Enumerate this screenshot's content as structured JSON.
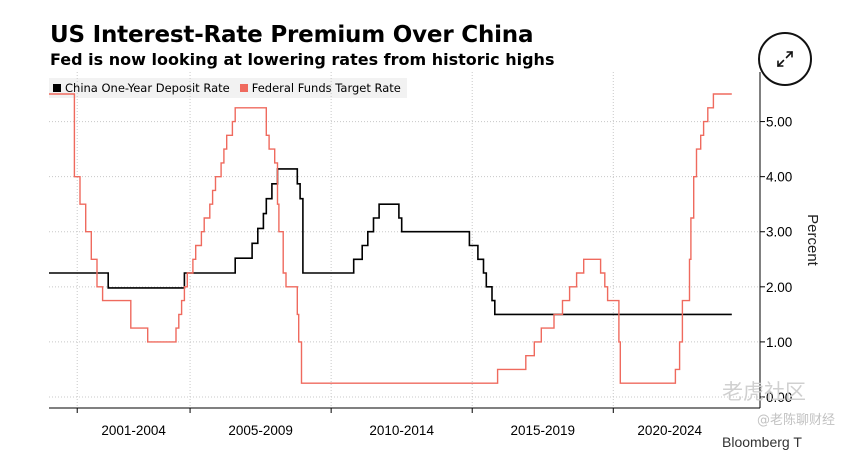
{
  "header": {
    "title": "US Interest-Rate Premium Over China",
    "subtitle": "Fed is now looking at lowering rates from historic highs"
  },
  "expand_button": {
    "icon": "expand-arrows-icon"
  },
  "watermark": {
    "line1": "老虎社区",
    "line2": "@老陈聊财经"
  },
  "source": "Bloomberg T",
  "chart_data": {
    "type": "line",
    "title": "US Interest-Rate Premium Over China",
    "subtitle": "Fed is now looking at lowering rates from historic highs",
    "xlabel": "",
    "ylabel": "Percent",
    "xlim": [
      2000,
      2025.2
    ],
    "ylim": [
      -0.2,
      5.9
    ],
    "x_ticks": [
      2001,
      2005,
      2010,
      2015,
      2020
    ],
    "x_tick_labels": [
      "2001-2004",
      "2005-2009",
      "2010-2014",
      "2015-2019",
      "2020-2024"
    ],
    "y_ticks": [
      0,
      1,
      2,
      3,
      4,
      5
    ],
    "y_tick_labels": [
      "0.00",
      "1.00",
      "2.00",
      "3.00",
      "4.00",
      "5.00"
    ],
    "grid": true,
    "y_axis_position": "right",
    "legend_position": "top-left",
    "series": [
      {
        "name": "China One-Year Deposit Rate",
        "color": "#000000",
        "step": true,
        "points": [
          [
            2000.0,
            2.25
          ],
          [
            2002.1,
            1.98
          ],
          [
            2004.8,
            2.25
          ],
          [
            2006.6,
            2.52
          ],
          [
            2007.2,
            2.79
          ],
          [
            2007.4,
            3.06
          ],
          [
            2007.6,
            3.33
          ],
          [
            2007.7,
            3.6
          ],
          [
            2007.9,
            3.87
          ],
          [
            2008.1,
            4.14
          ],
          [
            2008.8,
            3.87
          ],
          [
            2008.9,
            3.6
          ],
          [
            2009.0,
            2.25
          ],
          [
            2010.8,
            2.5
          ],
          [
            2011.1,
            2.75
          ],
          [
            2011.3,
            3.0
          ],
          [
            2011.5,
            3.25
          ],
          [
            2011.7,
            3.5
          ],
          [
            2012.4,
            3.25
          ],
          [
            2012.5,
            3.0
          ],
          [
            2014.9,
            2.75
          ],
          [
            2015.2,
            2.5
          ],
          [
            2015.4,
            2.25
          ],
          [
            2015.5,
            2.0
          ],
          [
            2015.7,
            1.75
          ],
          [
            2015.8,
            1.5
          ],
          [
            2024.2,
            1.5
          ]
        ]
      },
      {
        "name": "Federal Funds Target Rate",
        "color": "#ef6a5e",
        "step": true,
        "points": [
          [
            2000.0,
            5.5
          ],
          [
            2000.9,
            4.0
          ],
          [
            2001.1,
            3.5
          ],
          [
            2001.3,
            3.0
          ],
          [
            2001.5,
            2.5
          ],
          [
            2001.7,
            2.0
          ],
          [
            2001.9,
            1.75
          ],
          [
            2002.9,
            1.25
          ],
          [
            2003.5,
            1.0
          ],
          [
            2004.5,
            1.25
          ],
          [
            2004.6,
            1.5
          ],
          [
            2004.7,
            1.75
          ],
          [
            2004.8,
            2.0
          ],
          [
            2004.9,
            2.25
          ],
          [
            2005.1,
            2.5
          ],
          [
            2005.2,
            2.75
          ],
          [
            2005.4,
            3.0
          ],
          [
            2005.5,
            3.25
          ],
          [
            2005.7,
            3.5
          ],
          [
            2005.8,
            3.75
          ],
          [
            2005.9,
            4.0
          ],
          [
            2006.1,
            4.25
          ],
          [
            2006.2,
            4.5
          ],
          [
            2006.3,
            4.75
          ],
          [
            2006.5,
            5.0
          ],
          [
            2006.6,
            5.25
          ],
          [
            2007.7,
            4.75
          ],
          [
            2007.8,
            4.5
          ],
          [
            2008.0,
            4.25
          ],
          [
            2008.1,
            3.5
          ],
          [
            2008.15,
            3.0
          ],
          [
            2008.3,
            2.25
          ],
          [
            2008.4,
            2.0
          ],
          [
            2008.8,
            1.5
          ],
          [
            2008.85,
            1.0
          ],
          [
            2008.95,
            0.25
          ],
          [
            2015.9,
            0.5
          ],
          [
            2016.9,
            0.75
          ],
          [
            2017.2,
            1.0
          ],
          [
            2017.45,
            1.25
          ],
          [
            2017.9,
            1.5
          ],
          [
            2018.2,
            1.75
          ],
          [
            2018.45,
            2.0
          ],
          [
            2018.7,
            2.25
          ],
          [
            2018.95,
            2.5
          ],
          [
            2019.55,
            2.25
          ],
          [
            2019.7,
            2.0
          ],
          [
            2019.8,
            1.75
          ],
          [
            2020.2,
            1.0
          ],
          [
            2020.25,
            0.25
          ],
          [
            2022.2,
            0.5
          ],
          [
            2022.35,
            1.0
          ],
          [
            2022.45,
            1.75
          ],
          [
            2022.7,
            2.5
          ],
          [
            2022.75,
            3.25
          ],
          [
            2022.85,
            4.0
          ],
          [
            2022.95,
            4.5
          ],
          [
            2023.1,
            4.75
          ],
          [
            2023.2,
            5.0
          ],
          [
            2023.35,
            5.25
          ],
          [
            2023.55,
            5.5
          ],
          [
            2024.2,
            5.5
          ]
        ]
      }
    ]
  }
}
